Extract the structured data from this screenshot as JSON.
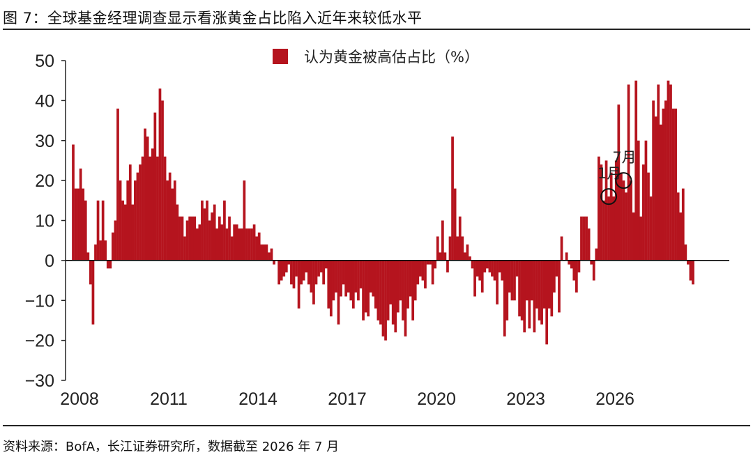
{
  "figure": {
    "title": "图 7：全球基金经理调查显示看涨黄金占比陷入近年来较低水平",
    "source": "资料来源：BofA，长江证券研究所，数据截至 2026 年 7 月"
  },
  "chart_data": {
    "type": "bar",
    "title": "",
    "xlabel": "",
    "ylabel": "",
    "ylim": [
      -30,
      50
    ],
    "yticks": [
      50,
      40,
      30,
      20,
      10,
      0,
      -10,
      -20,
      -30
    ],
    "ytick_labels": [
      "50",
      "40",
      "30",
      "20",
      "10",
      "0",
      "−10",
      "−20",
      "−30"
    ],
    "x_start": "2008-01",
    "x_end": "2026-07",
    "xticks": [
      "2008",
      "2011",
      "2014",
      "2017",
      "2020",
      "2023",
      "2026"
    ],
    "legend": "top-center",
    "grid": false,
    "color": "#b5141e",
    "series": [
      {
        "name": "认为黄金被高估占比（%）",
        "values": [
          29,
          18,
          18,
          23,
          18,
          15,
          2,
          -6,
          -16,
          4,
          15,
          5,
          15,
          5,
          -2,
          -2,
          7,
          10,
          38,
          20,
          15,
          14,
          20,
          24,
          14,
          20,
          22,
          24,
          26,
          33,
          31,
          26,
          28,
          37,
          26,
          43,
          40,
          26,
          20,
          22,
          18,
          20,
          14,
          11,
          11,
          6,
          10,
          11,
          11,
          11,
          8,
          9,
          15,
          13,
          15,
          10,
          12,
          14,
          8,
          11,
          9,
          15,
          8,
          11,
          6,
          9,
          9,
          8,
          8,
          20,
          8,
          8,
          8,
          9,
          6,
          7,
          4,
          4,
          4,
          2,
          3,
          -1,
          0,
          -6,
          -5,
          -4,
          -3,
          -1,
          -6,
          -7,
          -4,
          -12,
          -6,
          -5,
          -3,
          -6,
          -8,
          -11,
          -6,
          -4,
          -3,
          -6,
          -2,
          -12,
          -14,
          -10,
          -8,
          -16,
          -9,
          -6,
          -9,
          -8,
          -10,
          -12,
          -8,
          -10,
          -7,
          -15,
          -13,
          -14,
          -8,
          -9,
          -12,
          -15,
          -16,
          -19,
          -20,
          -15,
          -11,
          -16,
          -18,
          -13,
          -10,
          -15,
          -19,
          -12,
          -9,
          -15,
          -10,
          -6,
          -4,
          -5,
          -7,
          -1,
          -1,
          -6,
          -2,
          6,
          2,
          10,
          2,
          -3,
          6,
          31,
          18,
          6,
          11,
          6,
          2,
          4,
          1,
          -2,
          -9,
          -4,
          -5,
          -8,
          -3,
          -2,
          -3,
          -4,
          -5,
          -11,
          -3,
          -5,
          -19,
          -15,
          -8,
          -10,
          -10,
          -4,
          -14,
          -15,
          -18,
          -10,
          -17,
          -10,
          -18,
          -12,
          -15,
          -16,
          -12,
          -21,
          -12,
          -14,
          -8,
          -4,
          -13,
          6,
          0,
          2,
          -1,
          -2,
          -5,
          -8,
          -3,
          11,
          11,
          11,
          8,
          -1,
          -5,
          3,
          26,
          24,
          15,
          25,
          16,
          22,
          16,
          25,
          39,
          22,
          20,
          17,
          44,
          20,
          12,
          45,
          30,
          11,
          24,
          30,
          22,
          16,
          40,
          36,
          44,
          34,
          38,
          40,
          45,
          44,
          38,
          38,
          17,
          12,
          18,
          4,
          -1,
          -5,
          -6
        ]
      }
    ],
    "annotations": [
      {
        "label": "1月",
        "target": "2026-01"
      },
      {
        "label": "7月",
        "target": "2026-07"
      }
    ]
  }
}
